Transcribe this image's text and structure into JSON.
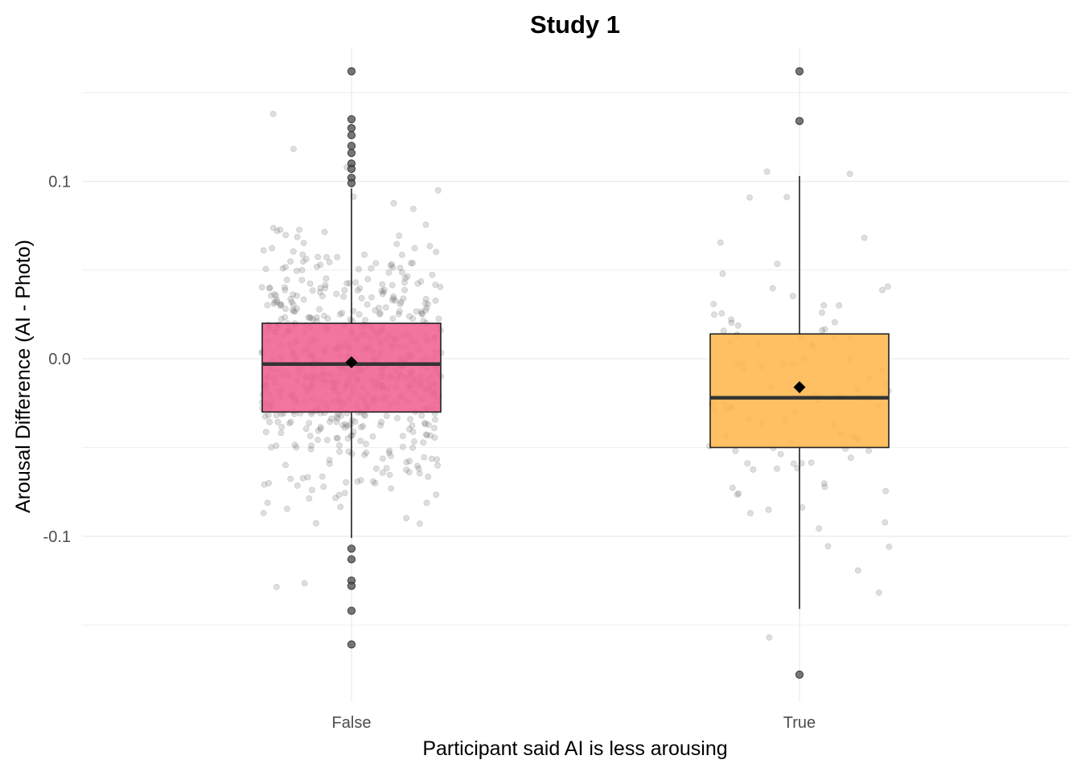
{
  "chart_data": {
    "type": "boxplot",
    "title": "Study 1",
    "xlabel": "Participant said AI is less arousing",
    "ylabel": "Arousal Difference (AI - Photo)",
    "ylim": [
      -0.193,
      0.175
    ],
    "y_ticks": [
      0.1,
      0.0,
      -0.1
    ],
    "y_tick_labels": [
      "0.1",
      "0.0",
      "-0.1"
    ],
    "grid": true,
    "legend": "none",
    "categories": [
      "False",
      "True"
    ],
    "colors": {
      "False": "#f06292",
      "True": "#ffb74d"
    },
    "boxes": [
      {
        "category": "False",
        "q1": -0.03,
        "median": -0.003,
        "q3": 0.02,
        "mean": -0.002,
        "whisker_low": -0.101,
        "whisker_high": 0.096,
        "outliers": [
          0.162,
          0.135,
          0.13,
          0.126,
          0.12,
          0.116,
          0.11,
          0.107,
          0.102,
          0.099,
          -0.107,
          -0.113,
          -0.125,
          -0.128,
          -0.142,
          -0.161
        ]
      },
      {
        "category": "True",
        "q1": -0.05,
        "median": -0.022,
        "q3": 0.014,
        "mean": -0.016,
        "whisker_low": -0.141,
        "whisker_high": 0.103,
        "outliers": [
          0.162,
          0.134,
          -0.178
        ]
      }
    ],
    "jitter_counts": {
      "False": 620,
      "True": 100
    }
  }
}
